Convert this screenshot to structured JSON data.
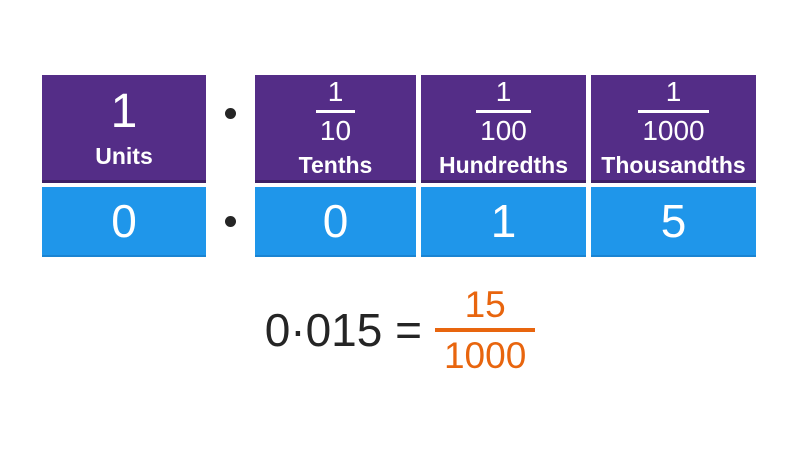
{
  "colors": {
    "purple": "#542d87",
    "purple-dark": "#3f2166",
    "blue": "#1f96ea",
    "blue-dark": "#1a84d2",
    "orange": "#e8650e",
    "text-dark": "#252525",
    "background": "#ffffff"
  },
  "place_value_table": {
    "decimal_point": "·",
    "columns": [
      {
        "id": "units",
        "header": {
          "value": "1",
          "label": "Units"
        },
        "digit": "0"
      },
      {
        "id": "tenths",
        "header": {
          "fraction": {
            "numerator": "1",
            "denominator": "10"
          },
          "label": "Tenths"
        },
        "digit": "0"
      },
      {
        "id": "hundredths",
        "header": {
          "fraction": {
            "numerator": "1",
            "denominator": "100"
          },
          "label": "Hundredths"
        },
        "digit": "1"
      },
      {
        "id": "thousandths",
        "header": {
          "fraction": {
            "numerator": "1",
            "denominator": "1000"
          },
          "label": "Thousandths"
        },
        "digit": "5"
      }
    ]
  },
  "equation": {
    "left": "0·015 =",
    "fraction": {
      "numerator": "15",
      "denominator": "1000"
    }
  }
}
